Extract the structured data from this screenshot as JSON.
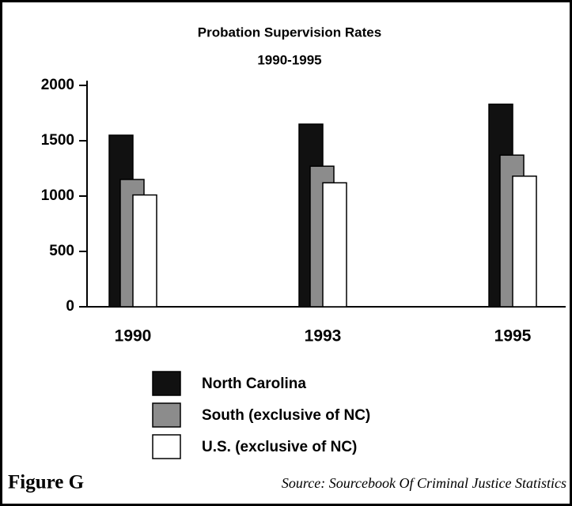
{
  "chart_data": {
    "type": "bar",
    "title": "Probation Supervision Rates",
    "subtitle": "1990-1995",
    "figure_label": "Figure G",
    "source": "Source: Sourcebook Of Criminal Justice Statistics",
    "categories": [
      "1990",
      "1993",
      "1995"
    ],
    "series": [
      {
        "name": "North Carolina",
        "color": "#111111",
        "values": [
          1550,
          1650,
          1830
        ]
      },
      {
        "name": "South (exclusive of NC)",
        "color": "#8c8c8c",
        "values": [
          1150,
          1270,
          1370
        ]
      },
      {
        "name": "U.S. (exclusive of NC)",
        "color": "#ffffff",
        "values": [
          1010,
          1120,
          1180
        ]
      }
    ],
    "ylim": [
      0,
      2000
    ],
    "yticks": [
      0,
      500,
      1000,
      1500,
      2000
    ],
    "grid": false
  }
}
